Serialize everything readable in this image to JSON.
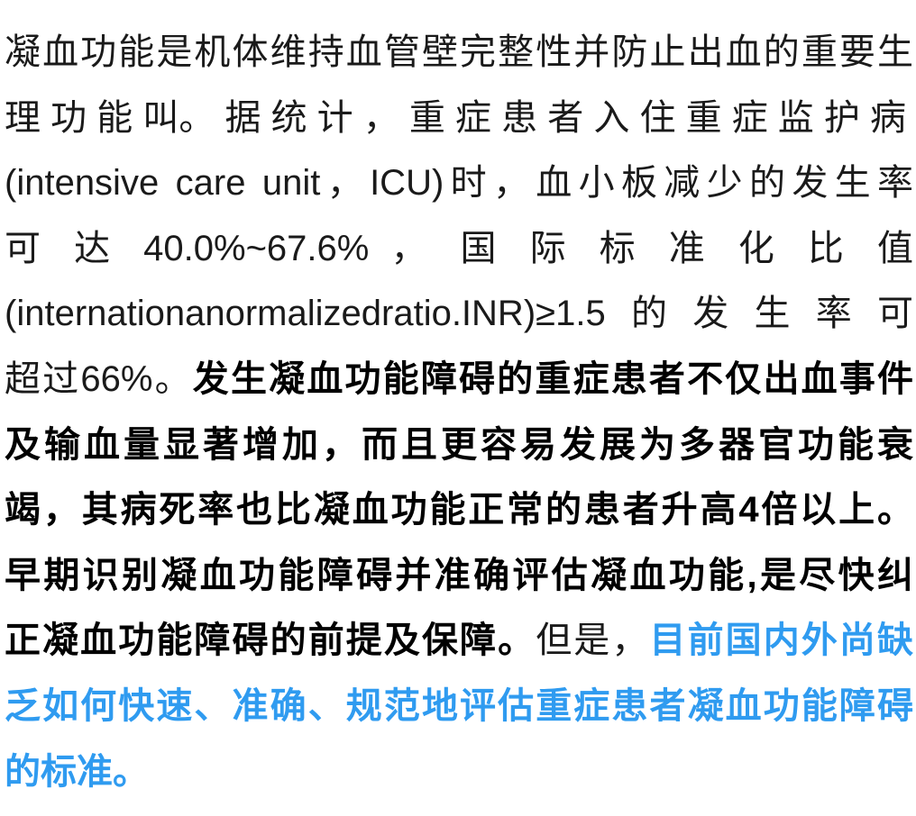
{
  "colors": {
    "text": "#1a1a1a",
    "bold": "#000000",
    "highlight": "#2f9bf0"
  },
  "paragraph": {
    "lines": [
      [
        {
          "text": "凝血功能是机体维持血管壁完整性并防止出血的重要生",
          "style": "normal"
        }
      ],
      [
        {
          "text": "理 功 能 叫。 据 统 计 ， 重 症 患 者 入 住 重 症 监 护 病 房",
          "style": "normal"
        }
      ],
      [
        {
          "text": "(intensive care unit，ICU)时，血小板减少的发生率",
          "style": "normal"
        }
      ],
      [
        {
          "text": "可 达 40.0%~67.6% ， 国 际 标 准 化 比 值",
          "style": "normal"
        }
      ],
      [
        {
          "text": "(internationanormalizedratio.INR)≥1.5的发生率可",
          "style": "normal"
        }
      ],
      [
        {
          "text": "超过66%。",
          "style": "normal"
        },
        {
          "text": "发生凝血功能障碍的重症患者不仅出血事件",
          "style": "bold"
        }
      ],
      [
        {
          "text": "及输血量显著增加，而且更容易发展为多器官功能衰",
          "style": "bold"
        }
      ],
      [
        {
          "text": "竭，其病死率也比凝血功能正常的患者升高4倍以上。",
          "style": "bold"
        }
      ],
      [
        {
          "text": "早期识别凝血功能障碍并准确评估凝血功能,是尽快纠",
          "style": "bold"
        }
      ],
      [
        {
          "text": "正凝血功能障碍的前提及保障。",
          "style": "bold"
        },
        {
          "text": "但是，",
          "style": "normal"
        },
        {
          "text": "目前国内外尚缺",
          "style": "blue"
        }
      ],
      [
        {
          "text": "乏如何快速、准确、规范地评估重症患者凝血功能障碍",
          "style": "blue"
        }
      ],
      [
        {
          "text": "的标准。",
          "style": "blue"
        }
      ]
    ]
  }
}
